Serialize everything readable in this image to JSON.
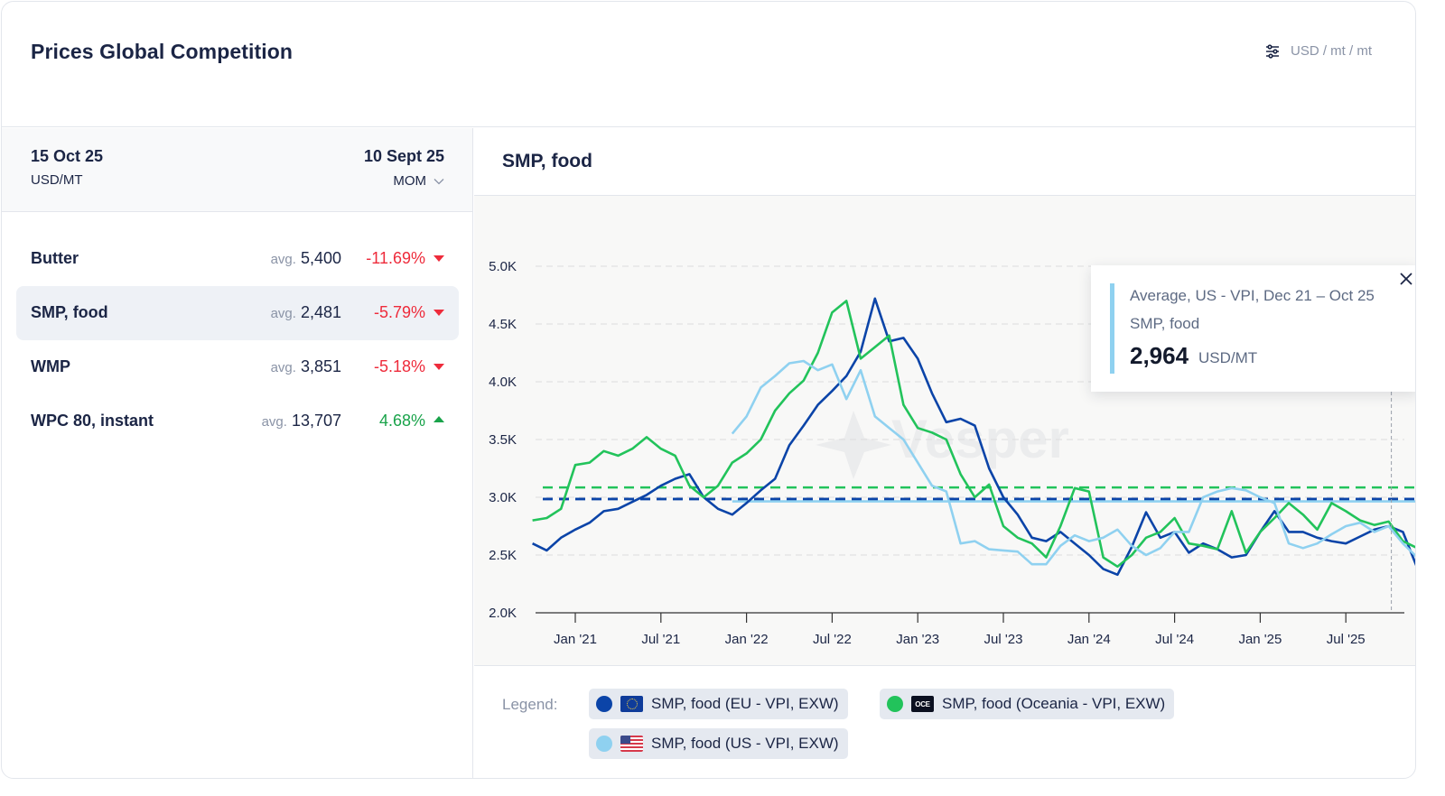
{
  "header": {
    "title": "Prices Global Competition",
    "units_label": "USD / mt / mt",
    "units_icon": "sliders-icon"
  },
  "left_panel": {
    "current_date": "15 Oct 25",
    "unit": "USD/MT",
    "compare_date": "10 Sept 25",
    "compare_mode": "MOM",
    "avg_prefix": "avg.",
    "items": [
      {
        "name": "Butter",
        "avg": "5,400",
        "change": "-11.69%",
        "direction": "down",
        "active": false
      },
      {
        "name": "SMP, food",
        "avg": "2,481",
        "change": "-5.79%",
        "direction": "down",
        "active": true
      },
      {
        "name": "WMP",
        "avg": "3,851",
        "change": "-5.18%",
        "direction": "down",
        "active": false
      },
      {
        "name": "WPC 80, instant",
        "avg": "13,707",
        "change": "4.68%",
        "direction": "up",
        "active": false
      }
    ]
  },
  "chart_panel": {
    "title": "SMP, food",
    "watermark": "Vesper",
    "tooltip": {
      "line1": "Average, US - VPI, Dec 21 – Oct 25",
      "line2": "SMP, food",
      "value": "2,964",
      "unit": "USD/MT",
      "accent": "#8fd1f0"
    },
    "legend": {
      "label": "Legend:",
      "items": [
        {
          "name": "SMP, food (EU - VPI, EXW)",
          "color": "#0b44a8",
          "flag": "eu-flag"
        },
        {
          "name": "SMP, food (Oceania - VPI, EXW)",
          "color": "#22c35b",
          "flag": "oce",
          "flag_text": "OCE"
        },
        {
          "name": "SMP, food (US - VPI, EXW)",
          "color": "#8fd1f0",
          "flag": "us-flag"
        }
      ]
    }
  },
  "chart_data": {
    "type": "line",
    "title": "SMP, food",
    "xlabel": "",
    "ylabel": "",
    "ylim": [
      2000,
      5000
    ],
    "yticks": [
      2000,
      2500,
      3000,
      3500,
      4000,
      4500,
      5000
    ],
    "ytick_labels": [
      "2.0K",
      "2.5K",
      "3.0K",
      "3.5K",
      "4.0K",
      "4.5K",
      "5.0K"
    ],
    "xlim": [
      "2020-10",
      "2025-11"
    ],
    "xticks": [
      "2021-01",
      "2021-07",
      "2022-01",
      "2022-07",
      "2023-01",
      "2023-07",
      "2024-01",
      "2024-07",
      "2025-01",
      "2025-07"
    ],
    "xtick_labels": [
      "Jan '21",
      "Jul '21",
      "Jan '22",
      "Jul '22",
      "Jan '23",
      "Jul '23",
      "Jan '24",
      "Jul '24",
      "Jan '25",
      "Jul '25"
    ],
    "grid": "horizontal-dashed",
    "legend_position": "bottom",
    "series": [
      {
        "name": "SMP, food (EU - VPI, EXW)",
        "color": "#0b44a8",
        "start": "2020-10",
        "values": [
          2600,
          2540,
          2650,
          2720,
          2780,
          2880,
          2900,
          2960,
          3020,
          3100,
          3160,
          3200,
          3000,
          2900,
          2850,
          2950,
          3060,
          3160,
          3450,
          3620,
          3800,
          3920,
          4050,
          4260,
          4720,
          4350,
          4380,
          4200,
          3900,
          3650,
          3680,
          3620,
          3250,
          3000,
          2850,
          2650,
          2620,
          2700,
          2600,
          2500,
          2380,
          2330,
          2570,
          2870,
          2650,
          2700,
          2520,
          2600,
          2550,
          2480,
          2500,
          2700,
          2880,
          2700,
          2700,
          2650,
          2620,
          2600,
          2660,
          2720,
          2750,
          2700,
          2390
        ],
        "average": 2985
      },
      {
        "name": "SMP, food (Oceania - VPI, EXW)",
        "color": "#22c35b",
        "start": "2020-10",
        "values": [
          2800,
          2820,
          2900,
          3280,
          3300,
          3400,
          3360,
          3420,
          3520,
          3420,
          3360,
          3100,
          3000,
          3100,
          3300,
          3380,
          3500,
          3750,
          3900,
          4010,
          4250,
          4600,
          4700,
          4200,
          4300,
          4400,
          3800,
          3600,
          3560,
          3500,
          3200,
          3000,
          3110,
          2750,
          2650,
          2600,
          2480,
          2750,
          3080,
          3050,
          2480,
          2400,
          2500,
          2650,
          2700,
          2820,
          2600,
          2580,
          2550,
          2880,
          2520,
          2700,
          2820,
          2950,
          2850,
          2720,
          2950,
          2880,
          2800,
          2760,
          2790,
          2620,
          2560
        ],
        "average": 3085
      },
      {
        "name": "SMP, food (US - VPI, EXW)",
        "color": "#8fd1f0",
        "start": "2021-12",
        "values": [
          3550,
          3700,
          3950,
          4050,
          4160,
          4180,
          4100,
          4150,
          3850,
          4100,
          3700,
          3600,
          3500,
          3300,
          3100,
          3050,
          2600,
          2620,
          2550,
          2540,
          2530,
          2420,
          2420,
          2580,
          2670,
          2620,
          2650,
          2720,
          2580,
          2500,
          2560,
          2700,
          2700,
          3000,
          3050,
          3080,
          3060,
          3000,
          2950,
          2600,
          2560,
          2600,
          2680,
          2750,
          2780,
          2700,
          2750,
          2600,
          2480
        ],
        "average": 2964
      }
    ]
  }
}
